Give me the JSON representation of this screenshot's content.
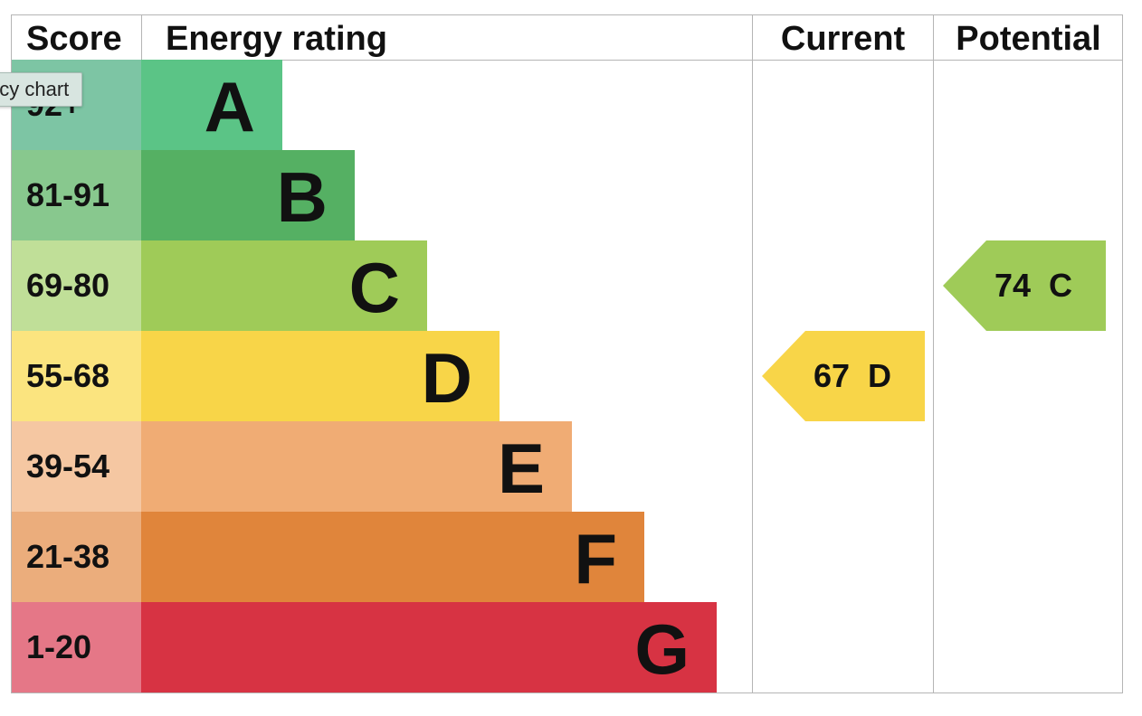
{
  "headers": {
    "score": "Score",
    "rating": "Energy rating",
    "current": "Current",
    "potential": "Potential"
  },
  "tooltip": "ncy chart",
  "chart_data": {
    "type": "bar",
    "bands": [
      {
        "letter": "A",
        "score_range": "92+",
        "color": "#5bc486",
        "score_color": "#7dc5a4"
      },
      {
        "letter": "B",
        "score_range": "81-91",
        "color": "#55b063",
        "score_color": "#88c88e"
      },
      {
        "letter": "C",
        "score_range": "69-80",
        "color": "#9fcb58",
        "score_color": "#c0df98"
      },
      {
        "letter": "D",
        "score_range": "55-68",
        "color": "#f8d548",
        "score_color": "#fbe47f"
      },
      {
        "letter": "E",
        "score_range": "39-54",
        "color": "#f0ac74",
        "score_color": "#f5c7a2"
      },
      {
        "letter": "F",
        "score_range": "21-38",
        "color": "#e0853b",
        "score_color": "#ebad7c"
      },
      {
        "letter": "G",
        "score_range": "1-20",
        "color": "#d73343",
        "score_color": "#e57787"
      }
    ],
    "current": {
      "value": 67,
      "band": "D",
      "label": "67 D",
      "color": "#f8d548"
    },
    "potential": {
      "value": 74,
      "band": "C",
      "label": "74 C",
      "color": "#9fcb58"
    }
  }
}
